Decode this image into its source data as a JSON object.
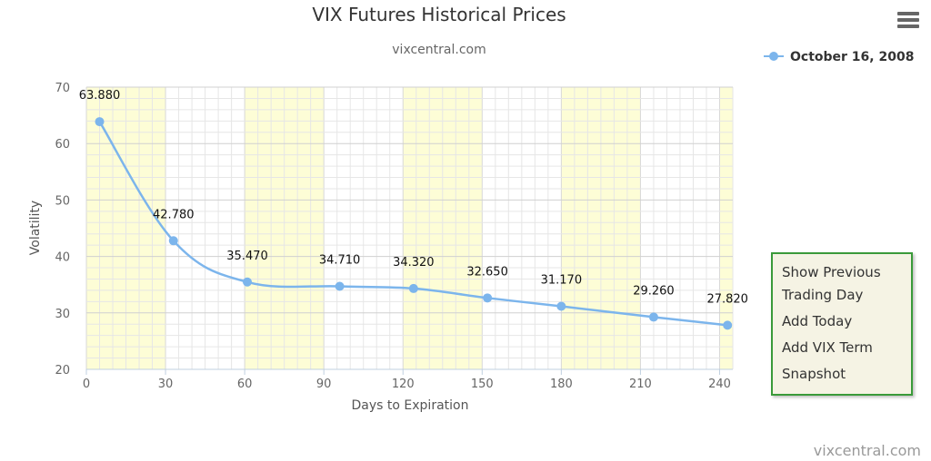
{
  "chart_data": {
    "type": "line",
    "title": "VIX Futures Historical Prices",
    "subtitle": "vixcentral.com",
    "xlabel": "Days to Expiration",
    "ylabel": "Volatility",
    "xlim": [
      0,
      245
    ],
    "ylim": [
      20,
      70
    ],
    "x_ticks": [
      0,
      30,
      60,
      90,
      120,
      150,
      180,
      210,
      240
    ],
    "y_ticks": [
      20,
      30,
      40,
      50,
      60,
      70
    ],
    "grid": true,
    "legend_position": "top-right",
    "bands": [
      [
        0,
        30
      ],
      [
        60,
        90
      ],
      [
        120,
        150
      ],
      [
        180,
        210
      ],
      [
        240,
        245
      ]
    ],
    "band_color": "#fdfdd6",
    "line_color": "#7cb5ec",
    "series": [
      {
        "name": "October 16, 2008",
        "x": [
          5,
          33,
          61,
          96,
          124,
          152,
          180,
          215,
          243
        ],
        "y": [
          63.88,
          42.78,
          35.47,
          34.71,
          34.32,
          32.65,
          31.17,
          29.26,
          27.82
        ],
        "labels": [
          "63.880",
          "42.780",
          "35.470",
          "34.710",
          "34.320",
          "32.650",
          "31.170",
          "29.260",
          "27.820"
        ]
      }
    ]
  },
  "menu": {
    "items": [
      "Show Previous Trading Day",
      "Add Today",
      "Add VIX Term",
      "Snapshot"
    ],
    "icon": "hamburger-menu-icon"
  },
  "credit": "vixcentral.com"
}
